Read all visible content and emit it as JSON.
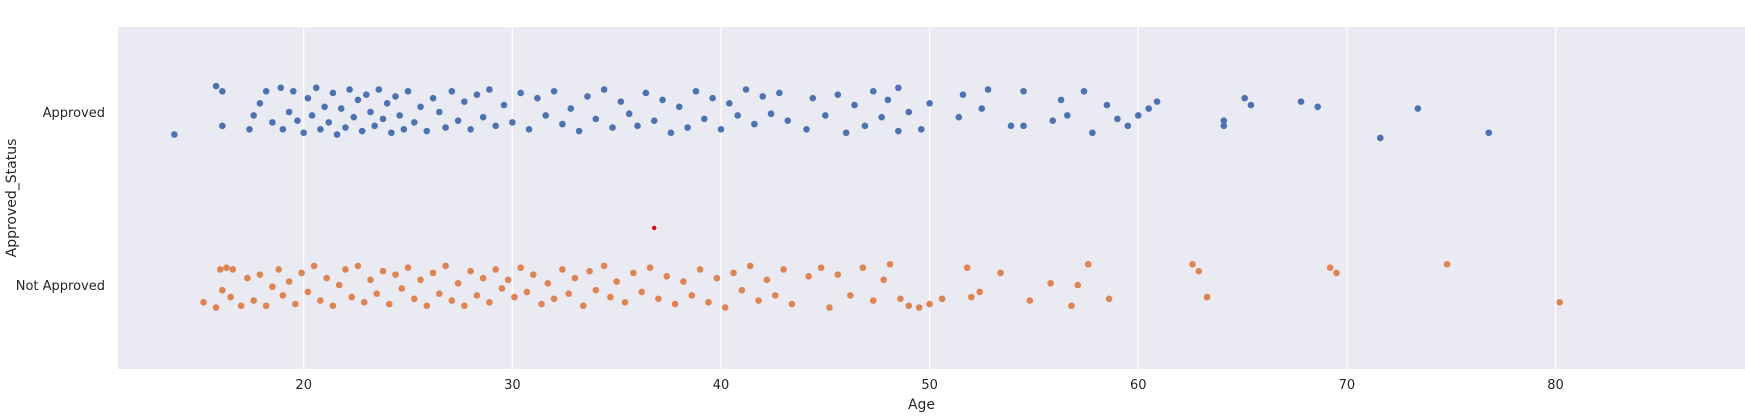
{
  "chart_data": {
    "type": "scatter",
    "subtype": "strip",
    "xlabel": "Age",
    "ylabel": "Approved_Status",
    "xlim": [
      10.5,
      84
    ],
    "xticks": [
      20,
      30,
      40,
      50,
      60,
      70,
      80
    ],
    "categories": [
      "Approved",
      "Not Approved"
    ],
    "grid": true,
    "legend": "none",
    "colors": {
      "background": "#eaeaf2",
      "grid": "#ffffff",
      "Approved": "#4c72b0",
      "Not Approved": "#dd8452",
      "highlight": "#e60000"
    },
    "series": [
      {
        "category": "Approved",
        "points": [
          [
            13.8,
            0.13
          ],
          [
            15.8,
            -0.15
          ],
          [
            16.1,
            0.08
          ],
          [
            16.1,
            -0.12
          ],
          [
            17.4,
            0.1
          ],
          [
            17.6,
            0.02
          ],
          [
            17.9,
            -0.05
          ],
          [
            18.2,
            -0.12
          ],
          [
            18.5,
            0.06
          ],
          [
            18.9,
            -0.14
          ],
          [
            19.0,
            0.1
          ],
          [
            19.3,
            0.0
          ],
          [
            19.5,
            -0.12
          ],
          [
            19.7,
            0.05
          ],
          [
            20.0,
            0.12
          ],
          [
            20.2,
            -0.08
          ],
          [
            20.4,
            0.02
          ],
          [
            20.6,
            -0.14
          ],
          [
            20.8,
            0.1
          ],
          [
            21.0,
            -0.03
          ],
          [
            21.2,
            0.06
          ],
          [
            21.4,
            -0.11
          ],
          [
            21.6,
            0.13
          ],
          [
            21.8,
            -0.02
          ],
          [
            22.0,
            0.09
          ],
          [
            22.2,
            -0.13
          ],
          [
            22.4,
            0.03
          ],
          [
            22.6,
            -0.07
          ],
          [
            22.8,
            0.11
          ],
          [
            23.0,
            -0.1
          ],
          [
            23.2,
            0.0
          ],
          [
            23.4,
            0.08
          ],
          [
            23.6,
            -0.13
          ],
          [
            23.8,
            0.04
          ],
          [
            24.0,
            -0.05
          ],
          [
            24.2,
            0.12
          ],
          [
            24.4,
            -0.09
          ],
          [
            24.6,
            0.02
          ],
          [
            24.8,
            0.1
          ],
          [
            25.0,
            -0.12
          ],
          [
            25.3,
            0.06
          ],
          [
            25.6,
            -0.03
          ],
          [
            25.9,
            0.11
          ],
          [
            26.2,
            -0.08
          ],
          [
            26.5,
            0.0
          ],
          [
            26.8,
            0.09
          ],
          [
            27.1,
            -0.12
          ],
          [
            27.4,
            0.05
          ],
          [
            27.7,
            -0.06
          ],
          [
            28.0,
            0.1
          ],
          [
            28.3,
            -0.1
          ],
          [
            28.6,
            0.03
          ],
          [
            28.9,
            -0.13
          ],
          [
            29.2,
            0.08
          ],
          [
            29.6,
            -0.04
          ],
          [
            30.0,
            0.06
          ],
          [
            30.4,
            -0.11
          ],
          [
            30.8,
            0.1
          ],
          [
            31.2,
            -0.08
          ],
          [
            31.6,
            0.02
          ],
          [
            32.0,
            -0.12
          ],
          [
            32.4,
            0.07
          ],
          [
            32.8,
            -0.02
          ],
          [
            33.2,
            0.11
          ],
          [
            33.6,
            -0.09
          ],
          [
            34.0,
            0.04
          ],
          [
            34.4,
            -0.13
          ],
          [
            34.8,
            0.09
          ],
          [
            35.2,
            -0.06
          ],
          [
            35.6,
            0.01
          ],
          [
            36.0,
            0.08
          ],
          [
            36.4,
            -0.11
          ],
          [
            36.8,
            0.05
          ],
          [
            37.2,
            -0.07
          ],
          [
            37.6,
            0.12
          ],
          [
            38.0,
            -0.03
          ],
          [
            38.4,
            0.09
          ],
          [
            38.8,
            -0.12
          ],
          [
            39.2,
            0.04
          ],
          [
            39.6,
            -0.08
          ],
          [
            40.0,
            0.1
          ],
          [
            40.4,
            -0.05
          ],
          [
            40.8,
            0.02
          ],
          [
            41.2,
            -0.13
          ],
          [
            41.6,
            0.07
          ],
          [
            42.0,
            -0.09
          ],
          [
            42.4,
            0.01
          ],
          [
            42.8,
            -0.11
          ],
          [
            43.2,
            0.05
          ],
          [
            44.1,
            0.1
          ],
          [
            44.4,
            -0.08
          ],
          [
            45.0,
            0.02
          ],
          [
            45.6,
            -0.1
          ],
          [
            46.0,
            0.12
          ],
          [
            46.4,
            -0.04
          ],
          [
            46.9,
            0.08
          ],
          [
            47.3,
            -0.12
          ],
          [
            47.7,
            0.03
          ],
          [
            48.0,
            -0.07
          ],
          [
            48.5,
            0.11
          ],
          [
            48.5,
            -0.14
          ],
          [
            49.0,
            0.0
          ],
          [
            49.6,
            0.1
          ],
          [
            50.0,
            -0.05
          ],
          [
            51.4,
            0.03
          ],
          [
            51.6,
            -0.1
          ],
          [
            52.5,
            -0.02
          ],
          [
            52.8,
            -0.13
          ],
          [
            53.9,
            0.08
          ],
          [
            54.5,
            -0.12
          ],
          [
            54.5,
            0.08
          ],
          [
            55.9,
            0.05
          ],
          [
            56.3,
            -0.07
          ],
          [
            56.6,
            0.02
          ],
          [
            57.4,
            -0.12
          ],
          [
            57.8,
            0.12
          ],
          [
            58.5,
            -0.04
          ],
          [
            59.0,
            0.04
          ],
          [
            59.5,
            0.08
          ],
          [
            60.0,
            0.02
          ],
          [
            60.5,
            -0.02
          ],
          [
            60.9,
            -0.06
          ],
          [
            64.1,
            0.05
          ],
          [
            64.1,
            0.08
          ],
          [
            65.1,
            -0.08
          ],
          [
            65.4,
            -0.04
          ],
          [
            67.8,
            -0.06
          ],
          [
            68.6,
            -0.03
          ],
          [
            71.6,
            0.15
          ],
          [
            73.4,
            -0.02
          ],
          [
            76.8,
            0.12
          ]
        ]
      },
      {
        "category": "Not Approved",
        "points": [
          [
            15.2,
            0.1
          ],
          [
            15.8,
            0.13
          ],
          [
            16.0,
            -0.09
          ],
          [
            16.1,
            0.03
          ],
          [
            16.3,
            -0.1
          ],
          [
            16.5,
            0.07
          ],
          [
            16.6,
            -0.09
          ],
          [
            17.0,
            0.12
          ],
          [
            17.3,
            -0.04
          ],
          [
            17.6,
            0.09
          ],
          [
            17.9,
            -0.06
          ],
          [
            18.2,
            0.12
          ],
          [
            18.5,
            0.01
          ],
          [
            18.8,
            -0.09
          ],
          [
            19.0,
            0.06
          ],
          [
            19.3,
            -0.02
          ],
          [
            19.6,
            0.11
          ],
          [
            19.9,
            -0.07
          ],
          [
            20.2,
            0.04
          ],
          [
            20.5,
            -0.11
          ],
          [
            20.8,
            0.09
          ],
          [
            21.1,
            -0.04
          ],
          [
            21.4,
            0.12
          ],
          [
            21.7,
            0.0
          ],
          [
            22.0,
            -0.09
          ],
          [
            22.3,
            0.07
          ],
          [
            22.6,
            -0.11
          ],
          [
            22.9,
            0.1
          ],
          [
            23.2,
            -0.03
          ],
          [
            23.5,
            0.05
          ],
          [
            23.8,
            -0.08
          ],
          [
            24.1,
            0.11
          ],
          [
            24.4,
            -0.06
          ],
          [
            24.7,
            0.02
          ],
          [
            25.0,
            -0.1
          ],
          [
            25.3,
            0.08
          ],
          [
            25.6,
            -0.03
          ],
          [
            25.9,
            0.12
          ],
          [
            26.2,
            -0.07
          ],
          [
            26.5,
            0.05
          ],
          [
            26.8,
            -0.11
          ],
          [
            27.1,
            0.09
          ],
          [
            27.4,
            -0.01
          ],
          [
            27.7,
            0.12
          ],
          [
            28.0,
            -0.08
          ],
          [
            28.3,
            0.06
          ],
          [
            28.6,
            -0.04
          ],
          [
            28.9,
            0.1
          ],
          [
            29.2,
            -0.09
          ],
          [
            29.5,
            0.02
          ],
          [
            29.8,
            -0.03
          ],
          [
            30.1,
            0.07
          ],
          [
            30.4,
            -0.1
          ],
          [
            30.7,
            0.04
          ],
          [
            31.0,
            -0.06
          ],
          [
            31.4,
            0.11
          ],
          [
            31.7,
            -0.01
          ],
          [
            32.0,
            0.08
          ],
          [
            32.4,
            -0.09
          ],
          [
            32.7,
            0.05
          ],
          [
            33.0,
            -0.04
          ],
          [
            33.4,
            0.12
          ],
          [
            33.7,
            -0.08
          ],
          [
            34.0,
            0.03
          ],
          [
            34.4,
            -0.11
          ],
          [
            34.7,
            0.07
          ],
          [
            35.0,
            -0.02
          ],
          [
            35.4,
            0.1
          ],
          [
            35.8,
            -0.07
          ],
          [
            36.2,
            0.04
          ],
          [
            36.6,
            -0.1
          ],
          [
            37.0,
            0.08
          ],
          [
            37.4,
            -0.05
          ],
          [
            37.8,
            0.11
          ],
          [
            38.2,
            -0.02
          ],
          [
            38.6,
            0.06
          ],
          [
            39.0,
            -0.09
          ],
          [
            39.4,
            0.1
          ],
          [
            39.8,
            -0.04
          ],
          [
            40.2,
            0.13
          ],
          [
            40.6,
            -0.07
          ],
          [
            41.0,
            0.03
          ],
          [
            41.4,
            -0.11
          ],
          [
            41.8,
            0.09
          ],
          [
            42.2,
            -0.03
          ],
          [
            42.6,
            0.06
          ],
          [
            43.0,
            -0.09
          ],
          [
            43.4,
            0.11
          ],
          [
            44.2,
            -0.05
          ],
          [
            44.8,
            -0.1
          ],
          [
            45.2,
            0.13
          ],
          [
            45.6,
            -0.06
          ],
          [
            46.2,
            0.06
          ],
          [
            46.8,
            -0.1
          ],
          [
            47.3,
            0.09
          ],
          [
            47.8,
            -0.03
          ],
          [
            48.1,
            -0.12
          ],
          [
            48.6,
            0.08
          ],
          [
            49.0,
            0.12
          ],
          [
            49.5,
            0.13
          ],
          [
            50.0,
            0.11
          ],
          [
            50.6,
            0.08
          ],
          [
            51.8,
            -0.1
          ],
          [
            52.0,
            0.07
          ],
          [
            52.4,
            0.04
          ],
          [
            53.4,
            -0.07
          ],
          [
            54.8,
            0.09
          ],
          [
            55.8,
            -0.01
          ],
          [
            56.8,
            0.12
          ],
          [
            57.1,
            0.0
          ],
          [
            57.6,
            -0.12
          ],
          [
            58.6,
            0.08
          ],
          [
            62.6,
            -0.12
          ],
          [
            62.9,
            -0.08
          ],
          [
            63.3,
            0.07
          ],
          [
            69.2,
            -0.1
          ],
          [
            69.5,
            -0.07
          ],
          [
            74.8,
            -0.12
          ],
          [
            80.2,
            0.1
          ]
        ]
      }
    ],
    "highlight_point": [
      36.8,
      0.67
    ]
  }
}
